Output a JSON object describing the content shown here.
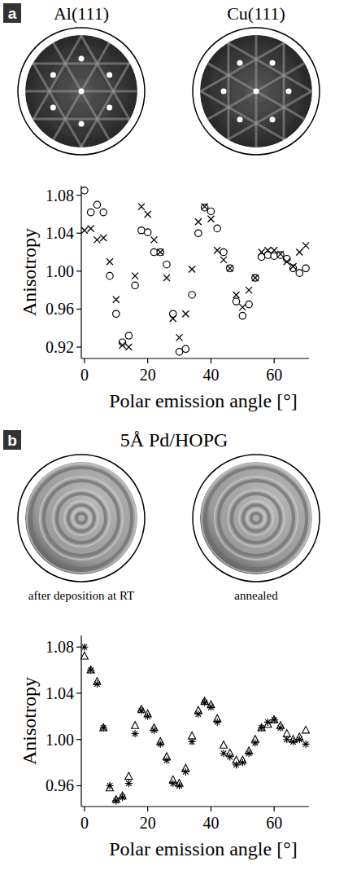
{
  "chart_data": [
    {
      "type": "scatter",
      "panel": "a",
      "annotations": [
        "Al(111)",
        "Cu(111)"
      ],
      "x_label": "Polar emission angle [°]",
      "y_label": "Anisotropy",
      "x": [
        0,
        2,
        4,
        6,
        8,
        10,
        12,
        14,
        16,
        18,
        20,
        22,
        24,
        26,
        28,
        30,
        32,
        34,
        36,
        38,
        40,
        42,
        44,
        46,
        48,
        50,
        52,
        54,
        56,
        58,
        60,
        62,
        64,
        66,
        68,
        70
      ],
      "series": [
        {
          "marker": "circle",
          "color": "#000000",
          "values": [
            1.085,
            1.062,
            1.07,
            1.062,
            0.995,
            0.955,
            0.925,
            0.932,
            0.985,
            1.043,
            1.041,
            1.02,
            1.02,
            1.007,
            0.955,
            0.915,
            0.918,
            0.975,
            1.04,
            1.067,
            1.063,
            1.045,
            1.02,
            1.003,
            0.968,
            0.953,
            0.965,
            0.993,
            1.015,
            1.017,
            1.016,
            1.017,
            1.013,
            1.003,
            0.998,
            1.003
          ]
        },
        {
          "marker": "cross",
          "color": "#000000",
          "values": [
            1.043,
            1.045,
            1.033,
            1.035,
            1.01,
            0.97,
            0.922,
            0.92,
            0.995,
            1.068,
            1.06,
            1.033,
            1.02,
            0.993,
            0.95,
            0.93,
            0.955,
            1.002,
            1.052,
            1.068,
            1.055,
            1.022,
            1.012,
            1.003,
            0.975,
            0.962,
            0.98,
            0.993,
            1.02,
            1.022,
            1.022,
            1.018,
            1.01,
            1.005,
            1.02,
            1.027
          ]
        }
      ],
      "xlim": [
        -1,
        71
      ],
      "ylim": [
        0.908,
        1.09
      ],
      "xticks": [
        0,
        20,
        40,
        60
      ],
      "yticks": [
        0.92,
        0.96,
        {
          "value": 1,
          "label": "1.00"
        },
        1.04,
        1.08
      ]
    },
    {
      "type": "scatter",
      "panel": "b",
      "title": "5Å Pd/HOPG",
      "annotations": [
        "after deposition at RT",
        "annealed"
      ],
      "x_label": "Polar emission angle [°]",
      "y_label": "Anisotropy",
      "x": [
        0,
        2,
        4,
        6,
        8,
        10,
        12,
        14,
        16,
        18,
        20,
        22,
        24,
        26,
        28,
        30,
        32,
        34,
        36,
        38,
        40,
        42,
        44,
        46,
        48,
        50,
        52,
        54,
        56,
        58,
        60,
        62,
        64,
        66,
        68,
        70
      ],
      "series": [
        {
          "marker": "triangle",
          "color": "#000000",
          "values": [
            1.072,
            1.06,
            1.05,
            1.01,
            0.958,
            0.948,
            0.951,
            0.968,
            1.012,
            1.026,
            1.022,
            1.01,
            0.998,
            0.985,
            0.965,
            0.962,
            0.975,
            1.003,
            1.025,
            1.033,
            1.03,
            1.018,
            0.995,
            0.988,
            0.982,
            0.982,
            0.99,
            1.0,
            1.01,
            1.013,
            1.017,
            1.012,
            1.005,
            1.0,
            1.002,
            1.008
          ]
        },
        {
          "marker": "asterisk",
          "color": "#000000",
          "values": [
            1.08,
            1.06,
            1.048,
            1.01,
            0.96,
            0.947,
            0.95,
            0.962,
            1.005,
            1.025,
            1.02,
            1.008,
            0.996,
            0.982,
            0.962,
            0.96,
            0.972,
            0.998,
            1.022,
            1.032,
            1.028,
            1.015,
            0.988,
            0.985,
            0.978,
            0.98,
            0.988,
            0.997,
            1.01,
            1.015,
            1.017,
            1.01,
            1.0,
            0.998,
            1.0,
            0.996
          ]
        }
      ],
      "xlim": [
        -1,
        71
      ],
      "ylim": [
        0.942,
        1.09
      ],
      "xticks": [
        0,
        20,
        40,
        60
      ],
      "yticks": [
        0.96,
        {
          "value": 1,
          "label": "1.00"
        },
        1.04,
        1.08
      ]
    }
  ]
}
